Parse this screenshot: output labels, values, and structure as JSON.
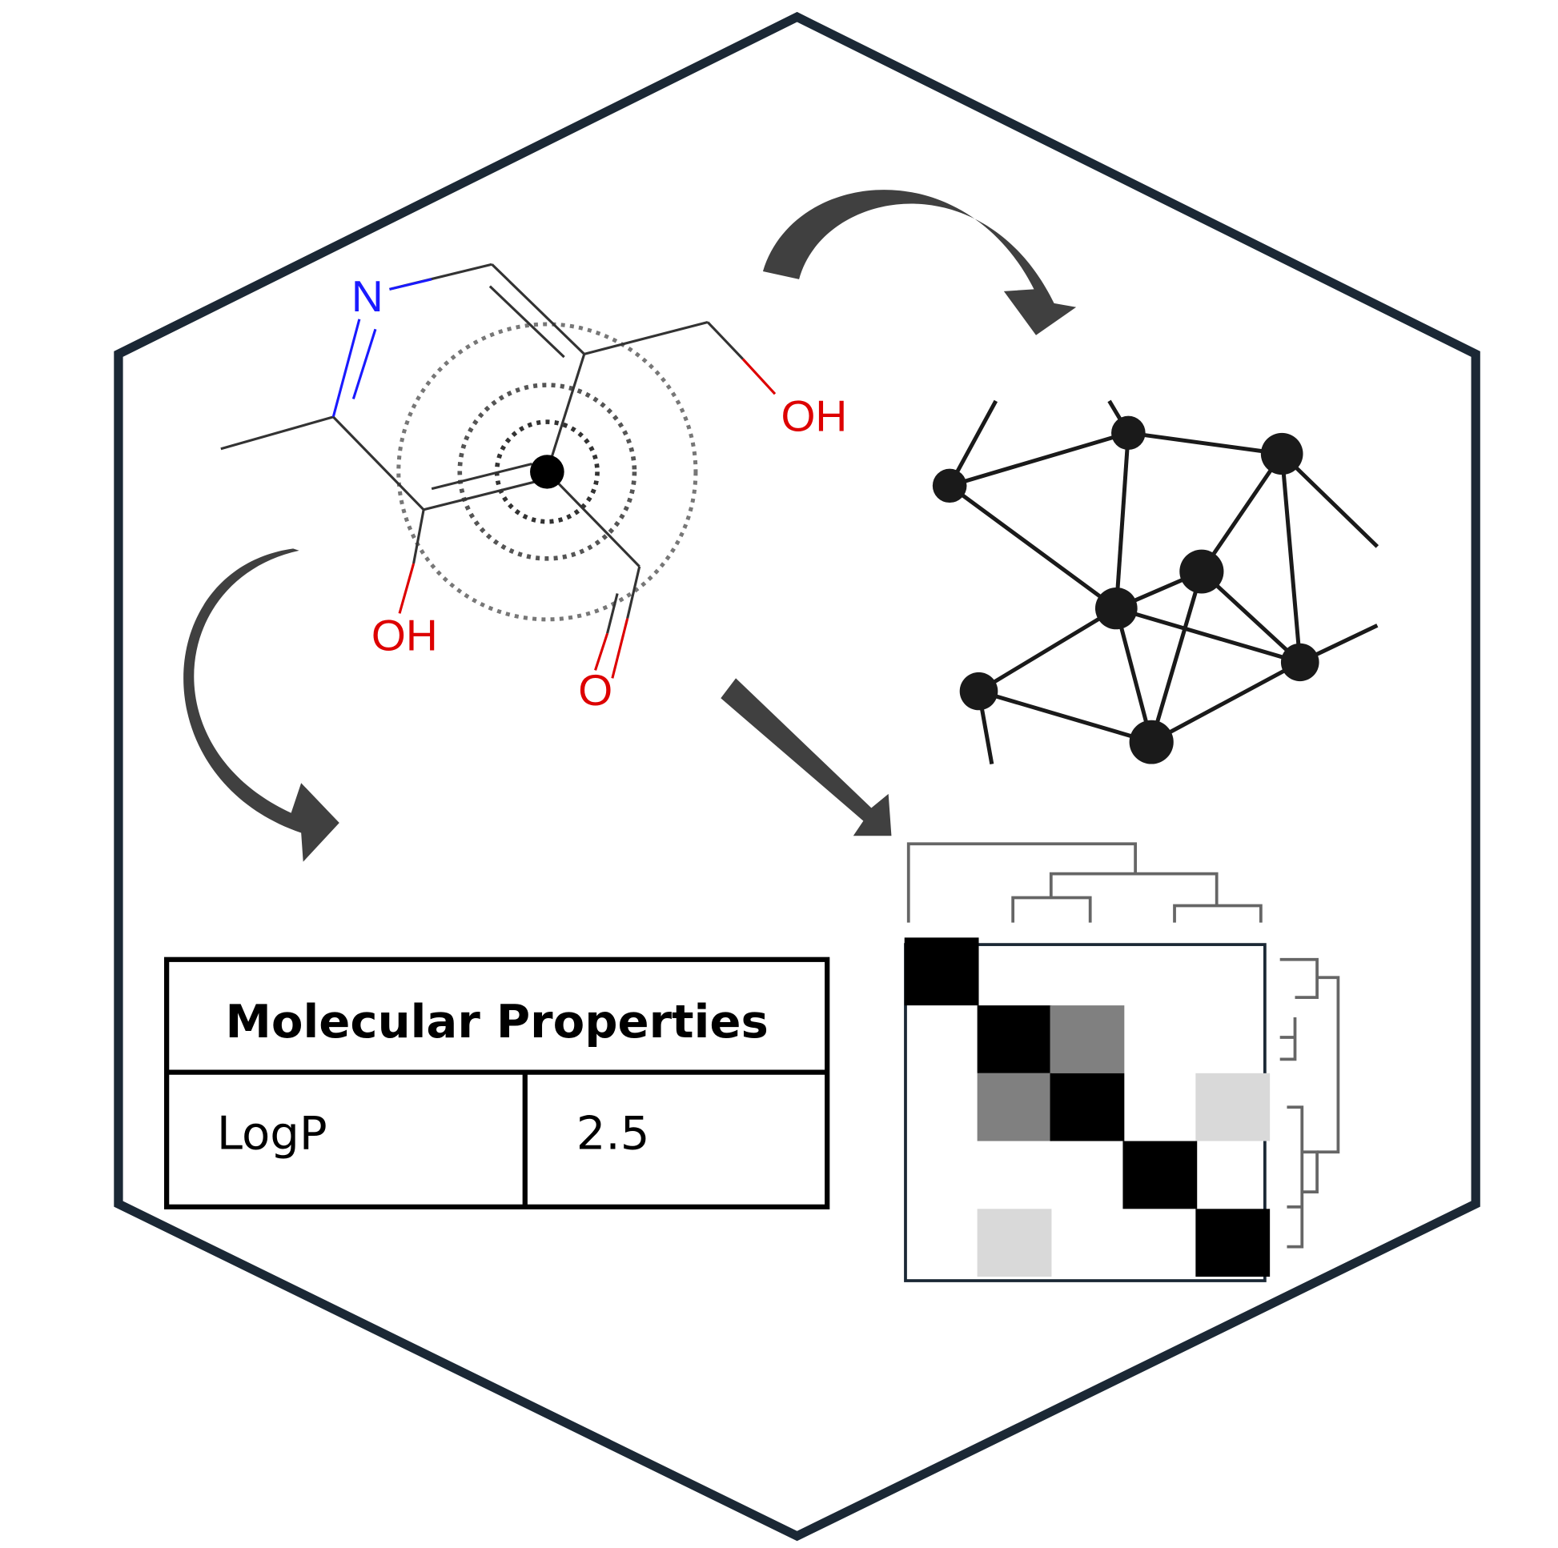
{
  "molecule": {
    "atoms": {
      "nitrogen": "N",
      "hydroxyl_top": "OH",
      "hydroxyl_left": "OH",
      "carbonyl_oxygen": "O"
    },
    "colors": {
      "bond": "#333333",
      "nitrogen": "#1a1aff",
      "oxygen": "#dd0000",
      "focus_atom": "#000000"
    }
  },
  "properties_table": {
    "title": "Molecular Properties",
    "rows": [
      {
        "name": "LogP",
        "value": "2.5"
      }
    ]
  },
  "colors": {
    "hexagon_border": "#1b2835",
    "arrow": "#404040",
    "graph_node": "#1a1a1a"
  },
  "heatmap": {
    "values": [
      [
        1,
        0,
        0,
        0,
        0
      ],
      [
        0,
        1,
        0.5,
        0,
        0
      ],
      [
        0,
        0.5,
        1,
        0,
        0.15
      ],
      [
        0,
        0,
        0,
        1,
        0
      ],
      [
        0,
        0.15,
        0,
        0,
        1
      ]
    ]
  }
}
